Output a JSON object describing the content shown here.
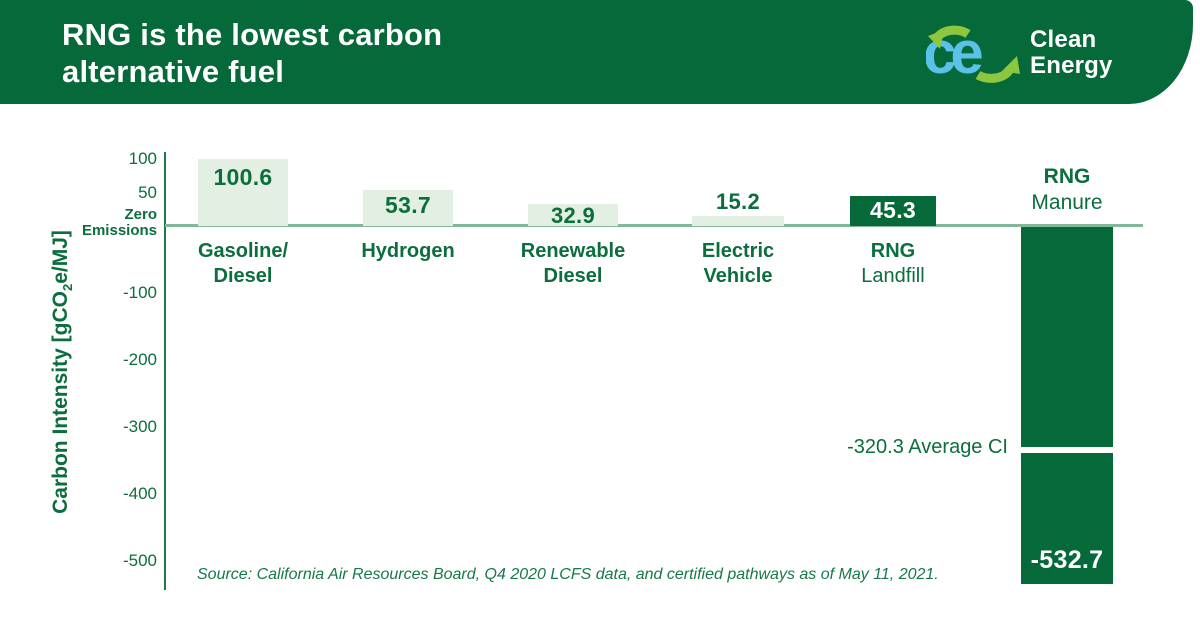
{
  "header": {
    "title_line1": "RNG is the lowest carbon",
    "title_line2": "alternative fuel",
    "logo": {
      "mark": "ce",
      "line1": "Clean",
      "line2": "Energy"
    }
  },
  "colors": {
    "brand_green": "#06693a",
    "light_bar_green": "#e4efe4",
    "text_green": "#0c6e3d",
    "zero_line_green": "#82b79a",
    "logo_lime": "#8dc63f",
    "logo_blue": "#5bc2e7"
  },
  "chart_data": {
    "type": "bar",
    "title": "RNG is the lowest carbon alternative fuel",
    "ylabel": "Carbon Intensity [gCO₂e/MJ]",
    "ylabel_parts": {
      "pre": "Carbon Intensity [gCO",
      "sub": "2",
      "post": "e/MJ]"
    },
    "ylim": [
      -560,
      115
    ],
    "grid": "off",
    "legend": "none",
    "yticks": [
      {
        "value": 100,
        "label": "100"
      },
      {
        "value": 50,
        "label": "50"
      },
      {
        "value": -100,
        "label": "-100"
      },
      {
        "value": -200,
        "label": "-200"
      },
      {
        "value": -300,
        "label": "-300"
      },
      {
        "value": -400,
        "label": "-400"
      },
      {
        "value": -500,
        "label": "-500"
      }
    ],
    "zero_label": {
      "line1": "Zero",
      "line2": "Emissions"
    },
    "categories": [
      "Gasoline/Diesel",
      "Hydrogen",
      "Renewable Diesel",
      "Electric Vehicle",
      "RNG Landfill",
      "RNG Manure"
    ],
    "values": [
      100.6,
      53.7,
      32.9,
      15.2,
      45.3,
      -532.7
    ],
    "bars": [
      {
        "name": "gasoline-diesel",
        "value": 100.6,
        "value_label": "100.6",
        "bar_style": "light",
        "value_label_position": "inside-top",
        "label_position": "below",
        "label_lines": [
          {
            "text": "Gasoline/",
            "bold": true
          },
          {
            "text": "Diesel",
            "bold": true
          }
        ]
      },
      {
        "name": "hydrogen",
        "value": 53.7,
        "value_label": "53.7",
        "bar_style": "light",
        "value_label_position": "inside-top",
        "label_position": "below",
        "label_lines": [
          {
            "text": "Hydrogen",
            "bold": true
          }
        ]
      },
      {
        "name": "renewable-diesel",
        "value": 32.9,
        "value_label": "32.9",
        "bar_style": "light",
        "value_label_position": "inside-top",
        "label_position": "below",
        "label_lines": [
          {
            "text": "Renewable",
            "bold": true
          },
          {
            "text": "Diesel",
            "bold": true
          }
        ]
      },
      {
        "name": "electric-vehicle",
        "value": 15.2,
        "value_label": "15.2",
        "bar_style": "light",
        "value_label_position": "above",
        "label_position": "below",
        "label_lines": [
          {
            "text": "Electric",
            "bold": true
          },
          {
            "text": "Vehicle",
            "bold": true
          }
        ]
      },
      {
        "name": "rng-landfill",
        "value": 45.3,
        "value_label": "45.3",
        "bar_style": "dark",
        "value_label_position": "inside-top-white",
        "label_position": "below",
        "label_lines": [
          {
            "text": "RNG",
            "bold": true
          },
          {
            "text": "Landfill",
            "bold": false
          }
        ]
      },
      {
        "name": "rng-manure",
        "value": -532.7,
        "value_label": "-532.7",
        "bar_style": "dark",
        "value_label_position": "inside-bottom-white",
        "label_position": "above",
        "label_lines": [
          {
            "text": "RNG",
            "bold": true
          },
          {
            "text": "Manure",
            "bold": false
          }
        ]
      }
    ],
    "average_ci": {
      "value": -320.3,
      "label": "-320.3 Average CI"
    },
    "source": "Source: California Air Resources Board, Q4 2020 LCFS data, and certified pathways as of May 11, 2021."
  }
}
